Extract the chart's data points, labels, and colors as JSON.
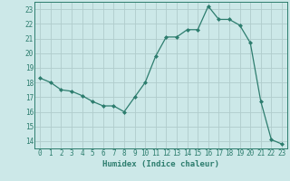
{
  "x": [
    0,
    1,
    2,
    3,
    4,
    5,
    6,
    7,
    8,
    9,
    10,
    11,
    12,
    13,
    14,
    15,
    16,
    17,
    18,
    19,
    20,
    21,
    22,
    23
  ],
  "y": [
    18.3,
    18.0,
    17.5,
    17.4,
    17.1,
    16.7,
    16.4,
    16.4,
    16.0,
    17.0,
    18.0,
    19.8,
    21.1,
    21.1,
    21.6,
    21.6,
    23.2,
    22.3,
    22.3,
    21.9,
    20.7,
    16.7,
    14.1,
    13.8
  ],
  "xlabel": "Humidex (Indice chaleur)",
  "line_color": "#2d7d6e",
  "marker": "D",
  "marker_size": 2.0,
  "bg_color": "#cce8e8",
  "grid_color": "#b0cccc",
  "tick_color": "#2d7d6e",
  "label_color": "#2d7d6e",
  "xlim": [
    -0.5,
    23.5
  ],
  "ylim": [
    13.5,
    23.5
  ],
  "yticks": [
    14,
    15,
    16,
    17,
    18,
    19,
    20,
    21,
    22,
    23
  ],
  "xticks": [
    0,
    1,
    2,
    3,
    4,
    5,
    6,
    7,
    8,
    9,
    10,
    11,
    12,
    13,
    14,
    15,
    16,
    17,
    18,
    19,
    20,
    21,
    22,
    23
  ]
}
